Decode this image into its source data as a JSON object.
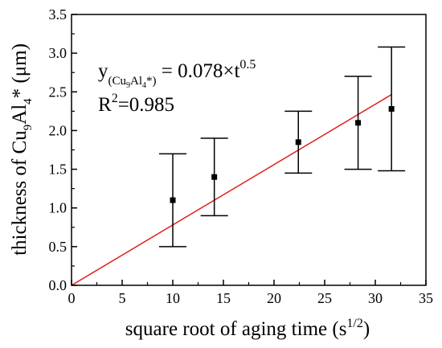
{
  "chart_data": {
    "type": "scatter",
    "xlabel": {
      "text": "square root of aging time (s",
      "sup": "1/2",
      "close": ")"
    },
    "ylabel": {
      "prefix": "thickness of Cu",
      "sub1": "9",
      "mid": "Al",
      "sub2": "4",
      "suffix": "* (μm)"
    },
    "xlim": [
      0,
      35
    ],
    "ylim": [
      0,
      3.5
    ],
    "xticks": [
      0,
      5,
      10,
      15,
      20,
      25,
      30,
      35
    ],
    "yticks": [
      0.0,
      0.5,
      1.0,
      1.5,
      2.0,
      2.5,
      3.0,
      3.5
    ],
    "xtick_labels": [
      "0",
      "5",
      "10",
      "15",
      "20",
      "25",
      "30",
      "35"
    ],
    "ytick_labels": [
      "0.0",
      "0.5",
      "1.0",
      "1.5",
      "2.0",
      "2.5",
      "3.0",
      "3.5"
    ],
    "points": [
      {
        "x": 10.0,
        "y": 1.1,
        "err_low": 0.5,
        "err_high": 1.7
      },
      {
        "x": 14.1,
        "y": 1.4,
        "err_low": 0.9,
        "err_high": 1.9
      },
      {
        "x": 22.4,
        "y": 1.85,
        "err_low": 1.45,
        "err_high": 2.25
      },
      {
        "x": 28.3,
        "y": 2.1,
        "err_low": 1.5,
        "err_high": 2.7
      },
      {
        "x": 31.6,
        "y": 2.28,
        "err_low": 1.48,
        "err_high": 3.08
      }
    ],
    "fit_line": {
      "slope": 0.078,
      "x_start": 0,
      "x_end": 31.6,
      "color": "#e0201b"
    },
    "annotations": {
      "equation": {
        "lhs": "y",
        "sub_a": "(Cu",
        "sub_b": "9",
        "sub_c": "Al",
        "sub_d": "4",
        "sub_e": "*)",
        "rhs": " = 0.078×t",
        "exp": "0.5"
      },
      "r2": {
        "base": "R",
        "exp": "2",
        "value": "=0.985"
      }
    },
    "grid": false,
    "marker_color": "#000000"
  }
}
